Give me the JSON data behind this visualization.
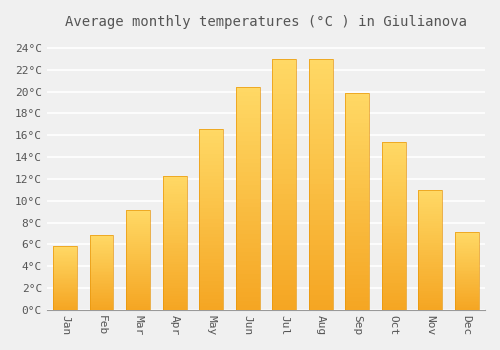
{
  "title": "Average monthly temperatures (°C ) in Giulianova",
  "months": [
    "Jan",
    "Feb",
    "Mar",
    "Apr",
    "May",
    "Jun",
    "Jul",
    "Aug",
    "Sep",
    "Oct",
    "Nov",
    "Dec"
  ],
  "values": [
    5.9,
    6.9,
    9.2,
    12.3,
    16.6,
    20.4,
    23.0,
    23.0,
    19.9,
    15.4,
    11.0,
    7.1
  ],
  "bar_color_bottom": "#F5A623",
  "bar_color_top": "#FFD966",
  "bar_edge_color": "#E8960A",
  "background_color": "#F0F0F0",
  "grid_color": "#FFFFFF",
  "text_color": "#555555",
  "ylim": [
    0,
    25
  ],
  "ytick_step": 2,
  "title_fontsize": 10,
  "tick_fontsize": 8,
  "font_family": "monospace"
}
